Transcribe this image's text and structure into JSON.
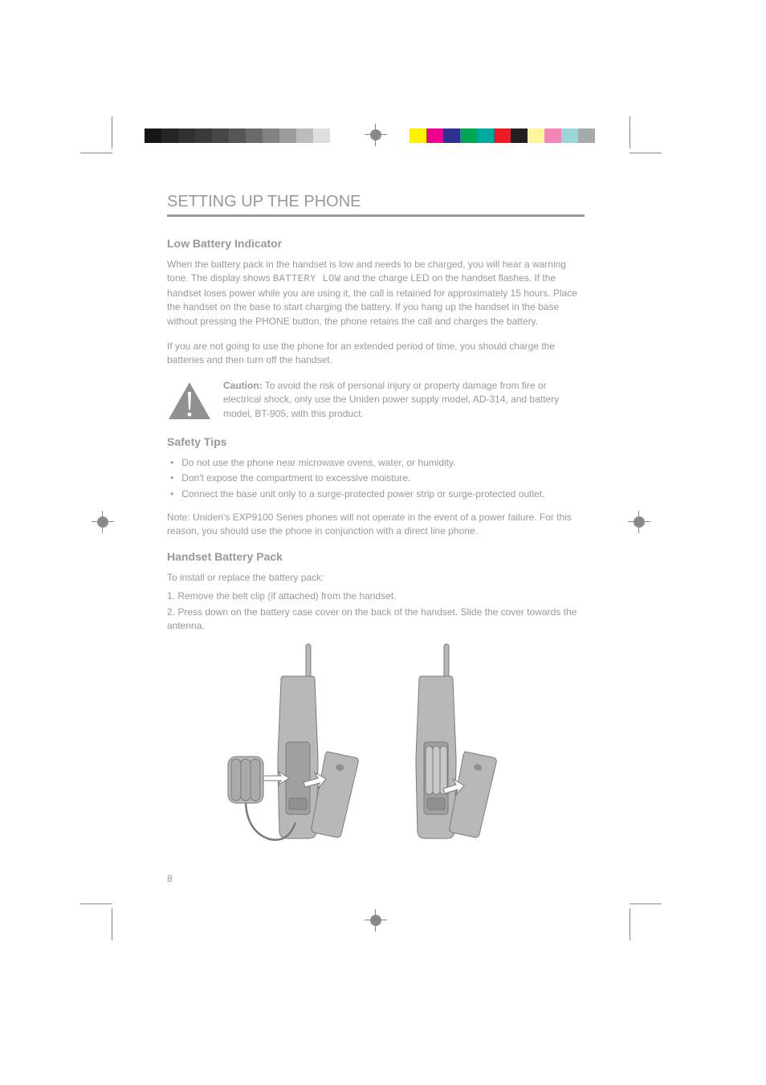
{
  "page": {
    "title": "SETTING UP THE PHONE",
    "number": "8"
  },
  "colorbars": {
    "left_colors": [
      "#161616",
      "#242424",
      "#303030",
      "#3a3a3a",
      "#474747",
      "#565656",
      "#6a6a6a",
      "#818181",
      "#9c9c9c",
      "#bcbcbc",
      "#dedede",
      "#ffffff"
    ],
    "right_colors": [
      "#fff200",
      "#ec008c",
      "#2e3192",
      "#00a651",
      "#00a99d",
      "#ed1c24",
      "#231f20",
      "#fff799",
      "#f287b7",
      "#9ad7db",
      "#a7a9ac"
    ]
  },
  "section1": {
    "heading": "Low Battery Indicator",
    "para1_pre": "When the battery pack in the handset is low and needs to be charged, you will hear a warning tone. The display shows ",
    "para1_lcd": "BATTERY LOW",
    "para1_post": " and the charge LED on the handset flashes. If the handset loses power while you are using it, the call is retained for approximately 15 hours. Place the handset on the base to start charging the battery. If you hang up the handset in the base without pressing the PHONE button, the phone retains the call and charges the battery.",
    "para2": "If you are not going to use the phone for an extended period of time, you should charge the batteries and then turn off the handset.",
    "warning_heading": "Caution:",
    "warning_text": "To avoid the risk of personal injury or property damage from fire or electrical shock, only use the Uniden power supply model, AD-314, and battery model, BT-905, with this product.",
    "warning_fill": "#909090"
  },
  "section2": {
    "heading": "Safety Tips",
    "bullets": [
      "Do not use the phone near microwave ovens, water, or humidity.",
      "Don't expose the compartment to excessive moisture.",
      "Connect the base unit only to a surge-protected power strip or surge-protected outlet."
    ],
    "note": "Note: Uniden's EXP9100 Series phones will not operate in the event of a power failure. For this reason, you should use the phone in conjunction with a direct line phone."
  },
  "section3": {
    "heading": "Handset Battery Pack",
    "intro": "To install or replace the battery pack:",
    "step1": "1. Remove the belt clip (if attached) from the handset.",
    "step2": "2. Press down on the battery case cover on the back of the handset. Slide the cover towards the antenna.",
    "phone_body_fill": "#b8b8b8",
    "phone_body_stroke": "#7a7a7a",
    "arrow_fill": "#ffffff",
    "arrow_stroke": "#7a7a7a"
  }
}
